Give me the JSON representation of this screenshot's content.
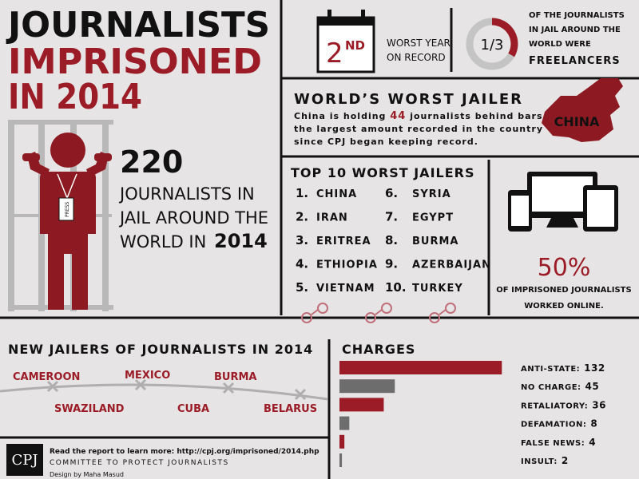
{
  "title": {
    "line1": "JOURNALISTS",
    "line2": "IMPRISONED",
    "line3": "IN 2014"
  },
  "worst_year": {
    "rank": "2",
    "suffix": "ND",
    "line1": "WORST YEAR",
    "line2": "ON RECORD"
  },
  "freelancers": {
    "fraction": "1/3",
    "lines": [
      "OF THE JOURNALISTS",
      "IN JAIL AROUND THE",
      "WORLD WERE"
    ],
    "emphasis": "FREELANCERS"
  },
  "worst_jailer": {
    "title": "WORLD’S WORST JAILER",
    "text_before": "China is holding",
    "count": "44",
    "text_after": "journalists behind bars,",
    "line2": "the largest amount recorded in the country",
    "line3": "since CPJ began keeping record.",
    "map_label": "CHINA"
  },
  "jailed": {
    "count": "220",
    "lines": [
      "JOURNALISTS IN",
      "JAIL AROUND THE",
      "WORLD IN"
    ],
    "year": "2014",
    "badge": "PRESS"
  },
  "top10": {
    "title": "TOP 10 WORST JAILERS",
    "items": [
      {
        "rank": "1.",
        "country": "CHINA"
      },
      {
        "rank": "2.",
        "country": "IRAN"
      },
      {
        "rank": "3.",
        "country": "ERITREA"
      },
      {
        "rank": "4.",
        "country": "ETHIOPIA"
      },
      {
        "rank": "5.",
        "country": "VIETNAM"
      },
      {
        "rank": "6.",
        "country": "SYRIA"
      },
      {
        "rank": "7.",
        "country": "EGYPT"
      },
      {
        "rank": "8.",
        "country": "BURMA"
      },
      {
        "rank": "9.",
        "country": "AZERBAIJAN"
      },
      {
        "rank": "10.",
        "country": "TURKEY"
      }
    ]
  },
  "online": {
    "percent": "50%",
    "lines": [
      "OF IMPRISONED JOURNALISTS",
      "WORKED ONLINE."
    ]
  },
  "new_jailers": {
    "title": "NEW JAILERS OF JOURNALISTS IN 2014",
    "countries": [
      "CAMEROON",
      "MEXICO",
      "BURMA",
      "SWAZILAND",
      "CUBA",
      "BELARUS"
    ]
  },
  "charges": {
    "title": "CHARGES",
    "categories": [
      "ANTI-STATE:",
      "NO CHARGE:",
      "RETALIATORY:",
      "DEFAMATION:",
      "FALSE NEWS:",
      "INSULT:"
    ],
    "values": [
      132,
      45,
      36,
      8,
      4,
      2
    ],
    "colors": [
      "#9b1c26",
      "#6e6d6d",
      "#9b1c26",
      "#6e6d6d",
      "#9b1c26",
      "#6e6d6d"
    ]
  },
  "footer": {
    "logo": "CPJ",
    "report": "Read the report to learn more: http://cpj.org/imprisoned/2014.php",
    "org": "COMMITTEE TO PROTECT JOURNALISTS",
    "credit": "Design by Maha Masud"
  }
}
